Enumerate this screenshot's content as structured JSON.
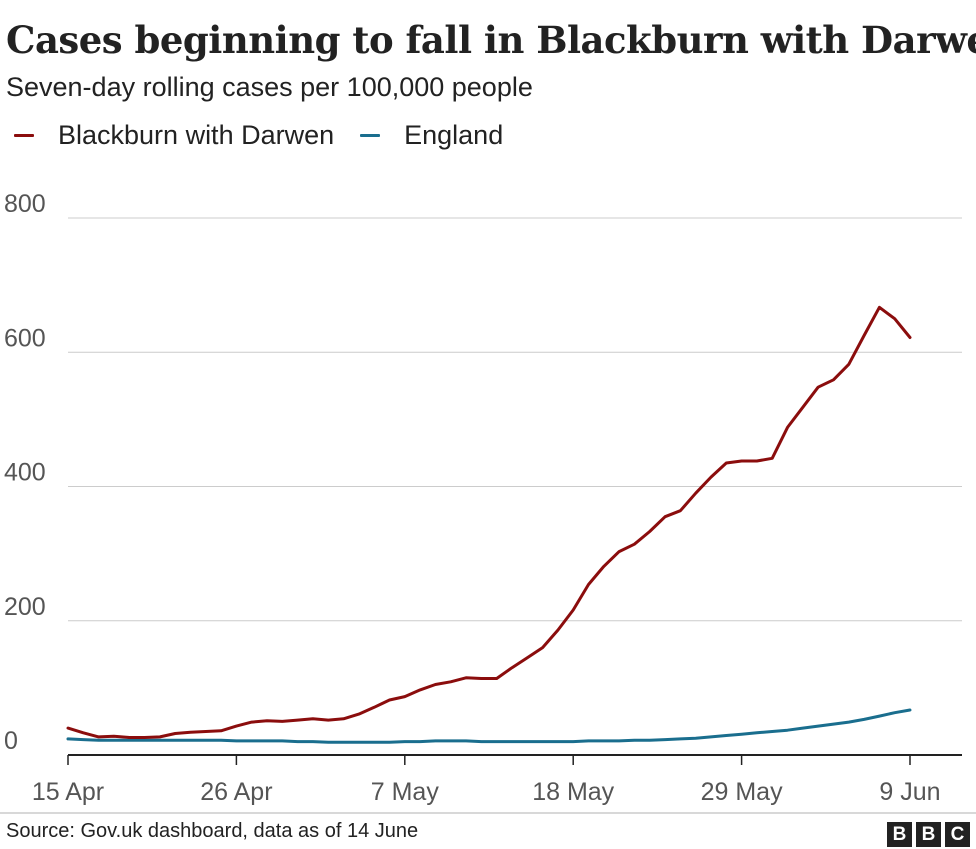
{
  "chart_data": {
    "type": "line",
    "title": "Cases beginning to fall in Blackburn with Darwen",
    "subtitle": "Seven-day rolling cases per 100,000 people",
    "ylim": [
      0,
      800
    ],
    "y_ticks": [
      "0",
      "200",
      "400",
      "600",
      "800"
    ],
    "x_ticks": [
      {
        "label": "15 Apr",
        "index": 0
      },
      {
        "label": "26 Apr",
        "index": 11
      },
      {
        "label": "7 May",
        "index": 22
      },
      {
        "label": "18 May",
        "index": 33
      },
      {
        "label": "29 May",
        "index": 44
      },
      {
        "label": "9 Jun",
        "index": 55
      }
    ],
    "grid": true,
    "legend_position": "top-left",
    "series": [
      {
        "name": "Blackburn with Darwen",
        "color": "#8b0d0d",
        "values": [
          40,
          33,
          27,
          28,
          26,
          26,
          27,
          32,
          34,
          35,
          36,
          43,
          49,
          51,
          50,
          52,
          54,
          52,
          54,
          61,
          71,
          82,
          87,
          97,
          105,
          109,
          115,
          114,
          114,
          130,
          145,
          160,
          186,
          216,
          254,
          281,
          303,
          314,
          333,
          355,
          364,
          390,
          414,
          435,
          438,
          438,
          442,
          488,
          518,
          548,
          559,
          582,
          625,
          667,
          650,
          622
        ]
      },
      {
        "name": "England",
        "color": "#1a6e8e",
        "values": [
          24,
          23,
          22,
          22,
          22,
          22,
          22,
          22,
          22,
          22,
          22,
          21,
          21,
          21,
          21,
          20,
          20,
          19,
          19,
          19,
          19,
          19,
          20,
          20,
          21,
          21,
          21,
          20,
          20,
          20,
          20,
          20,
          20,
          20,
          21,
          21,
          21,
          22,
          22,
          23,
          24,
          25,
          27,
          29,
          31,
          33,
          35,
          37,
          40,
          43,
          46,
          49,
          53,
          58,
          63,
          67
        ]
      }
    ]
  },
  "footer": {
    "source": "Source: Gov.uk dashboard, data as of 14 June",
    "logo": [
      "B",
      "B",
      "C"
    ]
  }
}
